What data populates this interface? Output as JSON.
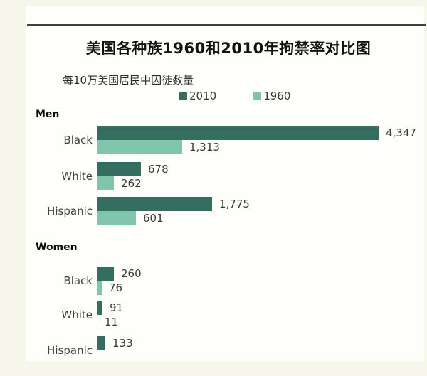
{
  "page": {
    "background_color": "#f7f6ea",
    "panel_color": "#fefefb",
    "rule_color": "#3f3f3f"
  },
  "chart_data": {
    "type": "bar",
    "orientation": "horizontal",
    "title": "美国各种族1960和2010年拘禁率对比图",
    "subtitle": "每10万美国居民中囚徒数量",
    "legend_position": "top-center",
    "axes_visible": false,
    "value_labels_visible": true,
    "legend": [
      {
        "name": "2010",
        "color": "#336e60"
      },
      {
        "name": "1960",
        "color": "#7fc5ac"
      }
    ],
    "sections": [
      {
        "label": "Men",
        "rows": [
          {
            "label": "Black",
            "v2010": 4347,
            "v2010_label": "4,347",
            "v1960": 1313,
            "v1960_label": "1,313"
          },
          {
            "label": "White",
            "v2010": 678,
            "v2010_label": "678",
            "v1960": 262,
            "v1960_label": "262"
          },
          {
            "label": "Hispanic",
            "v2010": 1775,
            "v2010_label": "1,775",
            "v1960": 601,
            "v1960_label": "601"
          }
        ]
      },
      {
        "label": "Women",
        "rows": [
          {
            "label": "Black",
            "v2010": 260,
            "v2010_label": "260",
            "v1960": 76,
            "v1960_label": "76"
          },
          {
            "label": "White",
            "v2010": 91,
            "v2010_label": "91",
            "v1960": 11,
            "v1960_label": "11"
          },
          {
            "label": "Hispanic",
            "v2010": 133,
            "v2010_label": "133",
            "v1960": null,
            "v1960_label": null
          }
        ]
      }
    ]
  }
}
